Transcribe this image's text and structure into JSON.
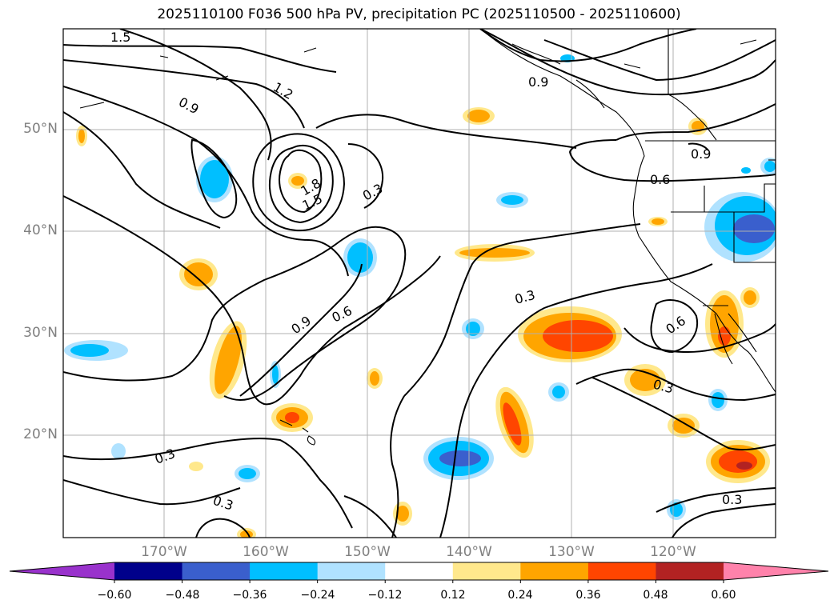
{
  "title": "2025110100 F036 500 hPa PV, precipitation PC (2025110500 - 2025110600)",
  "lon_ticks": [
    "170°W",
    "160°W",
    "150°W",
    "140°W",
    "130°W",
    "120°W"
  ],
  "lat_ticks": [
    "50°N",
    "40°N",
    "30°N",
    "20°N"
  ],
  "contour_labels": [
    "1.5",
    "1.2",
    "0.9",
    "1.8",
    "1.5",
    "0.3",
    "0.9",
    "0.6",
    "0.6",
    "0.9",
    "0.3",
    "0.6",
    "0.3",
    "0.3",
    "0.3",
    "0.3",
    "0.9"
  ],
  "colorbar": {
    "ticks": [
      "−0.60",
      "−0.48",
      "−0.36",
      "−0.24",
      "−0.12",
      "0.12",
      "0.24",
      "0.36",
      "0.48",
      "0.60"
    ],
    "colors": [
      "#9932cc",
      "#00008b",
      "#3a5fcd",
      "#00bfff",
      "#b0e2ff",
      "#ffffff",
      "#ffe88c",
      "#ffa500",
      "#ff4500",
      "#b22222",
      "#ff82ab"
    ]
  },
  "colors": {
    "pv_contour": "#000000",
    "coastline": "#000000",
    "grid": "#b0b0b0",
    "tick_label": "#808080"
  }
}
